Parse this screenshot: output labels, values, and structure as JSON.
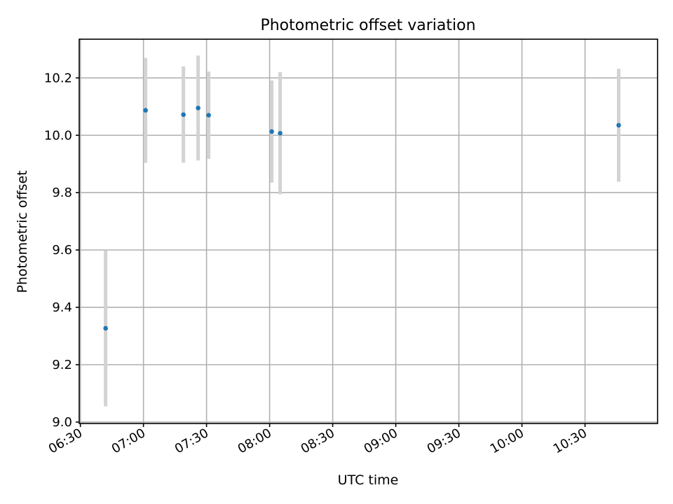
{
  "chart_data": {
    "type": "scatter",
    "title": "Photometric offset variation",
    "xlabel": "UTC time",
    "ylabel": "Photometric offset",
    "xlim": [
      "06:30",
      "11:00"
    ],
    "ylim": [
      8.995,
      10.335
    ],
    "x_ticks": [
      "06:30",
      "07:00",
      "07:30",
      "08:00",
      "08:30",
      "09:00",
      "09:30",
      "10:00",
      "10:30"
    ],
    "y_ticks": [
      "9.0",
      "9.2",
      "9.4",
      "9.6",
      "9.8",
      "10.0",
      "10.2"
    ],
    "grid": true,
    "marker_color": "#1f77b4",
    "errorbar_color": "#d3d3d3",
    "points": [
      {
        "x": "06:42",
        "y": 9.327,
        "yerr": 0.272
      },
      {
        "x": "07:01",
        "y": 10.087,
        "yerr": 0.183
      },
      {
        "x": "07:19",
        "y": 10.072,
        "yerr": 0.168
      },
      {
        "x": "07:26",
        "y": 10.095,
        "yerr": 0.183
      },
      {
        "x": "07:31",
        "y": 10.07,
        "yerr": 0.152
      },
      {
        "x": "08:01",
        "y": 10.013,
        "yerr": 0.178
      },
      {
        "x": "08:05",
        "y": 10.007,
        "yerr": 0.213
      },
      {
        "x": "10:46",
        "y": 10.035,
        "yerr": 0.197
      }
    ]
  }
}
